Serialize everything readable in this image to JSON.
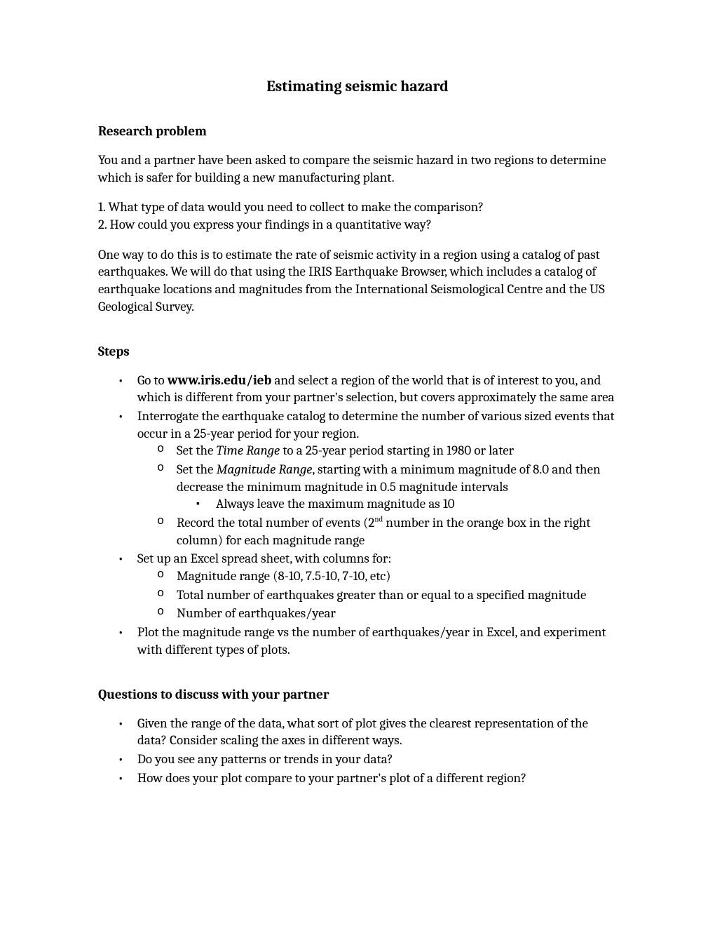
{
  "title": "Estimating seismic hazard",
  "sections": {
    "research": {
      "heading": "Research problem",
      "intro": "You and a partner have been asked to compare the seismic hazard in two regions to determine which is safer for building a new manufacturing plant.",
      "q1": "1. What type of data would you need to collect to make the comparison?",
      "q2": "2. How could you express your findings in a quantitative way?",
      "method": "One way to do this is to estimate the rate of seismic activity in a region using a catalog of past earthquakes.  We will do that using the IRIS Earthquake Browser, which includes a catalog of earthquake locations and magnitudes from the International Seismological Centre and the US Geological Survey."
    },
    "steps": {
      "heading": "Steps",
      "s1_pre": "Go to ",
      "s1_url": "www.iris.edu/ieb",
      "s1_post": " and select a region of the world that is of interest to you, and which is different from your partner's selection, but covers approximately the same area",
      "s2": "Interrogate the earthquake catalog to determine the number of various sized events that occur in a 25-year period for your region.",
      "s2a_pre": "Set the ",
      "s2a_em": "Time Range",
      "s2a_post": " to a 25-year period starting in 1980 or later",
      "s2b_pre": "Set the ",
      "s2b_em": "Magnitude Range",
      "s2b_post": ", starting with a minimum magnitude of 8.0 and then decrease the minimum magnitude in 0.5 magnitude intervals",
      "s2b_i": "Always leave the maximum magnitude as 10",
      "s2c_pre": "Record the total number of events (2",
      "s2c_sup": "nd",
      "s2c_post": " number in the orange box in the right column) for each magnitude range",
      "s3": "Set up an Excel spread sheet, with columns for:",
      "s3a": "Magnitude range (8-10, 7.5-10, 7-10, etc)",
      "s3b": "Total number of earthquakes greater than or equal to a specified magnitude",
      "s3c": "Number of earthquakes/year",
      "s4": "Plot the magnitude range vs the number of earthquakes/year in Excel, and experiment with different types of plots."
    },
    "questions": {
      "heading": "Questions to discuss with your partner",
      "q1": "Given the range of the data, what sort of plot gives the clearest representation of the data?  Consider scaling the axes in different ways.",
      "q2": "Do you see any patterns or trends in your data?",
      "q3": "How does your plot compare to your partner's plot of a different region?"
    }
  }
}
